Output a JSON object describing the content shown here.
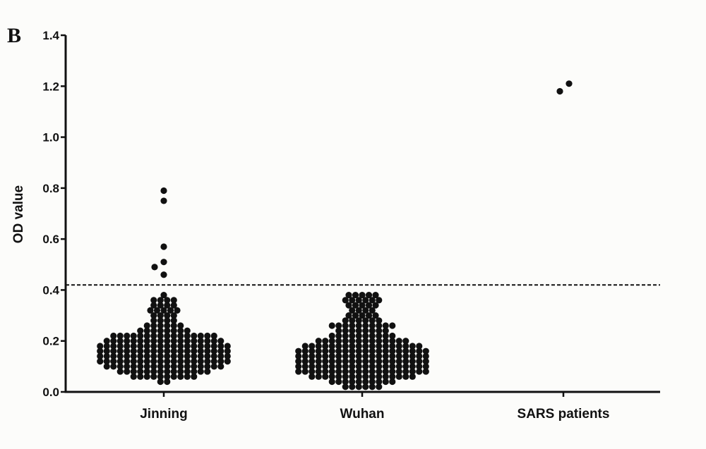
{
  "panel_label": "B",
  "chart_data": {
    "type": "scatter",
    "subtype": "beeswarm",
    "title": "",
    "xlabel": "",
    "ylabel": "OD value",
    "ylim": [
      0,
      1.4
    ],
    "yticks": [
      "0.0",
      "0.2",
      "0.4",
      "0.6",
      "0.8",
      "1.0",
      "1.2",
      "1.4"
    ],
    "grid": false,
    "cutoff_line": {
      "y": 0.42,
      "style": "dashed"
    },
    "marker_color": "#111111",
    "categories": [
      "Jinning",
      "Wuhan",
      "SARS patients"
    ],
    "series": [
      {
        "category": "Jinning",
        "binned_counts": [
          [
            0.04,
            2
          ],
          [
            0.06,
            10
          ],
          [
            0.08,
            14
          ],
          [
            0.1,
            18
          ],
          [
            0.12,
            20
          ],
          [
            0.14,
            20
          ],
          [
            0.16,
            20
          ],
          [
            0.18,
            20
          ],
          [
            0.2,
            18
          ],
          [
            0.22,
            16
          ],
          [
            0.24,
            8
          ],
          [
            0.26,
            6
          ],
          [
            0.28,
            4
          ],
          [
            0.3,
            4
          ],
          [
            0.32,
            5
          ],
          [
            0.34,
            4
          ],
          [
            0.36,
            4
          ],
          [
            0.38,
            1
          ]
        ],
        "outliers": [
          0.46,
          0.49,
          0.51,
          0.57,
          0.75,
          0.79
        ]
      },
      {
        "category": "Wuhan",
        "binned_counts": [
          [
            0.02,
            6
          ],
          [
            0.04,
            10
          ],
          [
            0.06,
            16
          ],
          [
            0.08,
            20
          ],
          [
            0.1,
            20
          ],
          [
            0.12,
            20
          ],
          [
            0.14,
            20
          ],
          [
            0.16,
            20
          ],
          [
            0.18,
            18
          ],
          [
            0.2,
            14
          ],
          [
            0.22,
            10
          ],
          [
            0.24,
            8
          ],
          [
            0.26,
            10
          ],
          [
            0.28,
            6
          ],
          [
            0.3,
            5
          ],
          [
            0.32,
            4
          ],
          [
            0.34,
            5
          ],
          [
            0.36,
            6
          ],
          [
            0.38,
            5
          ]
        ],
        "outliers": []
      },
      {
        "category": "SARS patients",
        "binned_counts": [],
        "outliers": [
          1.18,
          1.21
        ]
      }
    ]
  }
}
